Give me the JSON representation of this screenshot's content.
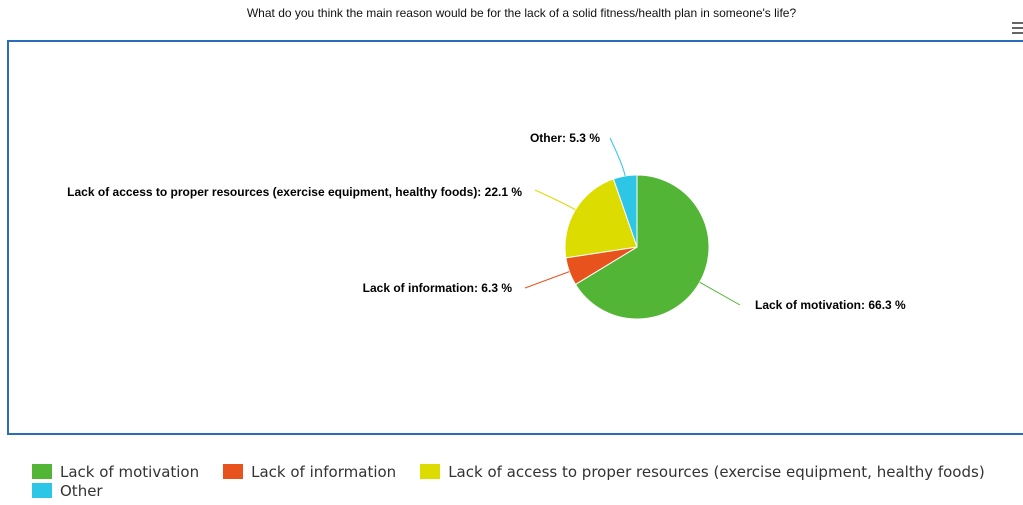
{
  "chart_data": {
    "type": "pie",
    "title": "What do you think the main reason would be for the lack of a solid fitness/health plan in someone's life?",
    "slices": [
      {
        "name": "Lack of motivation",
        "value": 66.3,
        "label": "Lack of motivation: 66.3 %",
        "color": "#52b535"
      },
      {
        "name": "Lack of information",
        "value": 6.3,
        "label": "Lack of information: 6.3 %",
        "color": "#e8521c"
      },
      {
        "name": "Lack of access to proper resources (exercise equipment, healthy foods)",
        "value": 22.1,
        "label": "Lack of access to proper resources (exercise equipment, healthy foods): 22.1 %",
        "color": "#dcdc00"
      },
      {
        "name": "Other",
        "value": 5.3,
        "label": "Other: 5.3 %",
        "color": "#2ec6e6"
      }
    ],
    "legend_position": "bottom"
  },
  "menu_icon": "hamburger-menu-icon",
  "frame_color": "#2a6ebb"
}
